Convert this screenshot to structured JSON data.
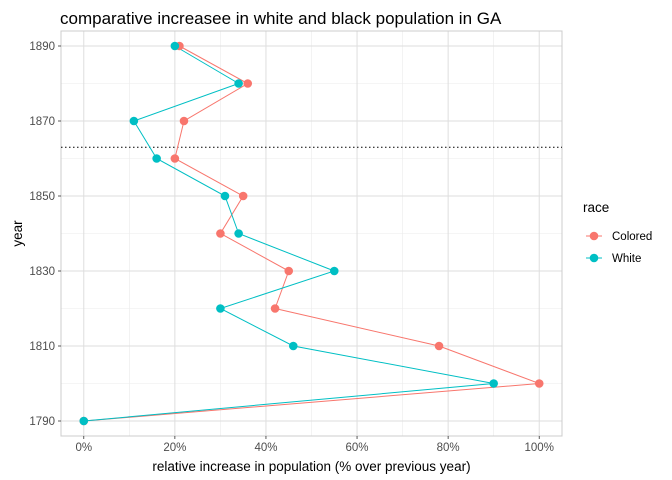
{
  "chart_data": {
    "type": "line",
    "title": "comparative increasee in white and black population in GA",
    "xlabel": "relative increase in population (% over previous year)",
    "ylabel": "year",
    "xlim": [
      -0.05,
      1.05
    ],
    "ylim": [
      1786,
      1894
    ],
    "x_ticks": [
      {
        "value": 0,
        "label": "0%"
      },
      {
        "value": 0.2,
        "label": "20%"
      },
      {
        "value": 0.4,
        "label": "40%"
      },
      {
        "value": 0.6,
        "label": "60%"
      },
      {
        "value": 0.8,
        "label": "80%"
      },
      {
        "value": 1.0,
        "label": "100%"
      }
    ],
    "y_ticks": [
      {
        "value": 1790,
        "label": "1790"
      },
      {
        "value": 1810,
        "label": "1810"
      },
      {
        "value": 1830,
        "label": "1830"
      },
      {
        "value": 1850,
        "label": "1850"
      },
      {
        "value": 1870,
        "label": "1870"
      },
      {
        "value": 1890,
        "label": "1890"
      }
    ],
    "reference_line": {
      "axis": "y",
      "value": 1863,
      "style": "dotted"
    },
    "grid": true,
    "legend": {
      "title": "race",
      "position": "right"
    },
    "series": [
      {
        "name": "Colored",
        "color": "#F8766D",
        "points": [
          {
            "x": 0,
            "y": 1790
          },
          {
            "x": 1.0,
            "y": 1800
          },
          {
            "x": 0.78,
            "y": 1810
          },
          {
            "x": 0.42,
            "y": 1820
          },
          {
            "x": 0.45,
            "y": 1830
          },
          {
            "x": 0.3,
            "y": 1840
          },
          {
            "x": 0.35,
            "y": 1850
          },
          {
            "x": 0.2,
            "y": 1860
          },
          {
            "x": 0.22,
            "y": 1870
          },
          {
            "x": 0.36,
            "y": 1880
          },
          {
            "x": 0.21,
            "y": 1890
          }
        ]
      },
      {
        "name": "White",
        "color": "#00BFC4",
        "points": [
          {
            "x": 0,
            "y": 1790
          },
          {
            "x": 0.9,
            "y": 1800
          },
          {
            "x": 0.46,
            "y": 1810
          },
          {
            "x": 0.3,
            "y": 1820
          },
          {
            "x": 0.55,
            "y": 1830
          },
          {
            "x": 0.34,
            "y": 1840
          },
          {
            "x": 0.31,
            "y": 1850
          },
          {
            "x": 0.16,
            "y": 1860
          },
          {
            "x": 0.11,
            "y": 1870
          },
          {
            "x": 0.34,
            "y": 1880
          },
          {
            "x": 0.2,
            "y": 1890
          }
        ]
      }
    ]
  }
}
